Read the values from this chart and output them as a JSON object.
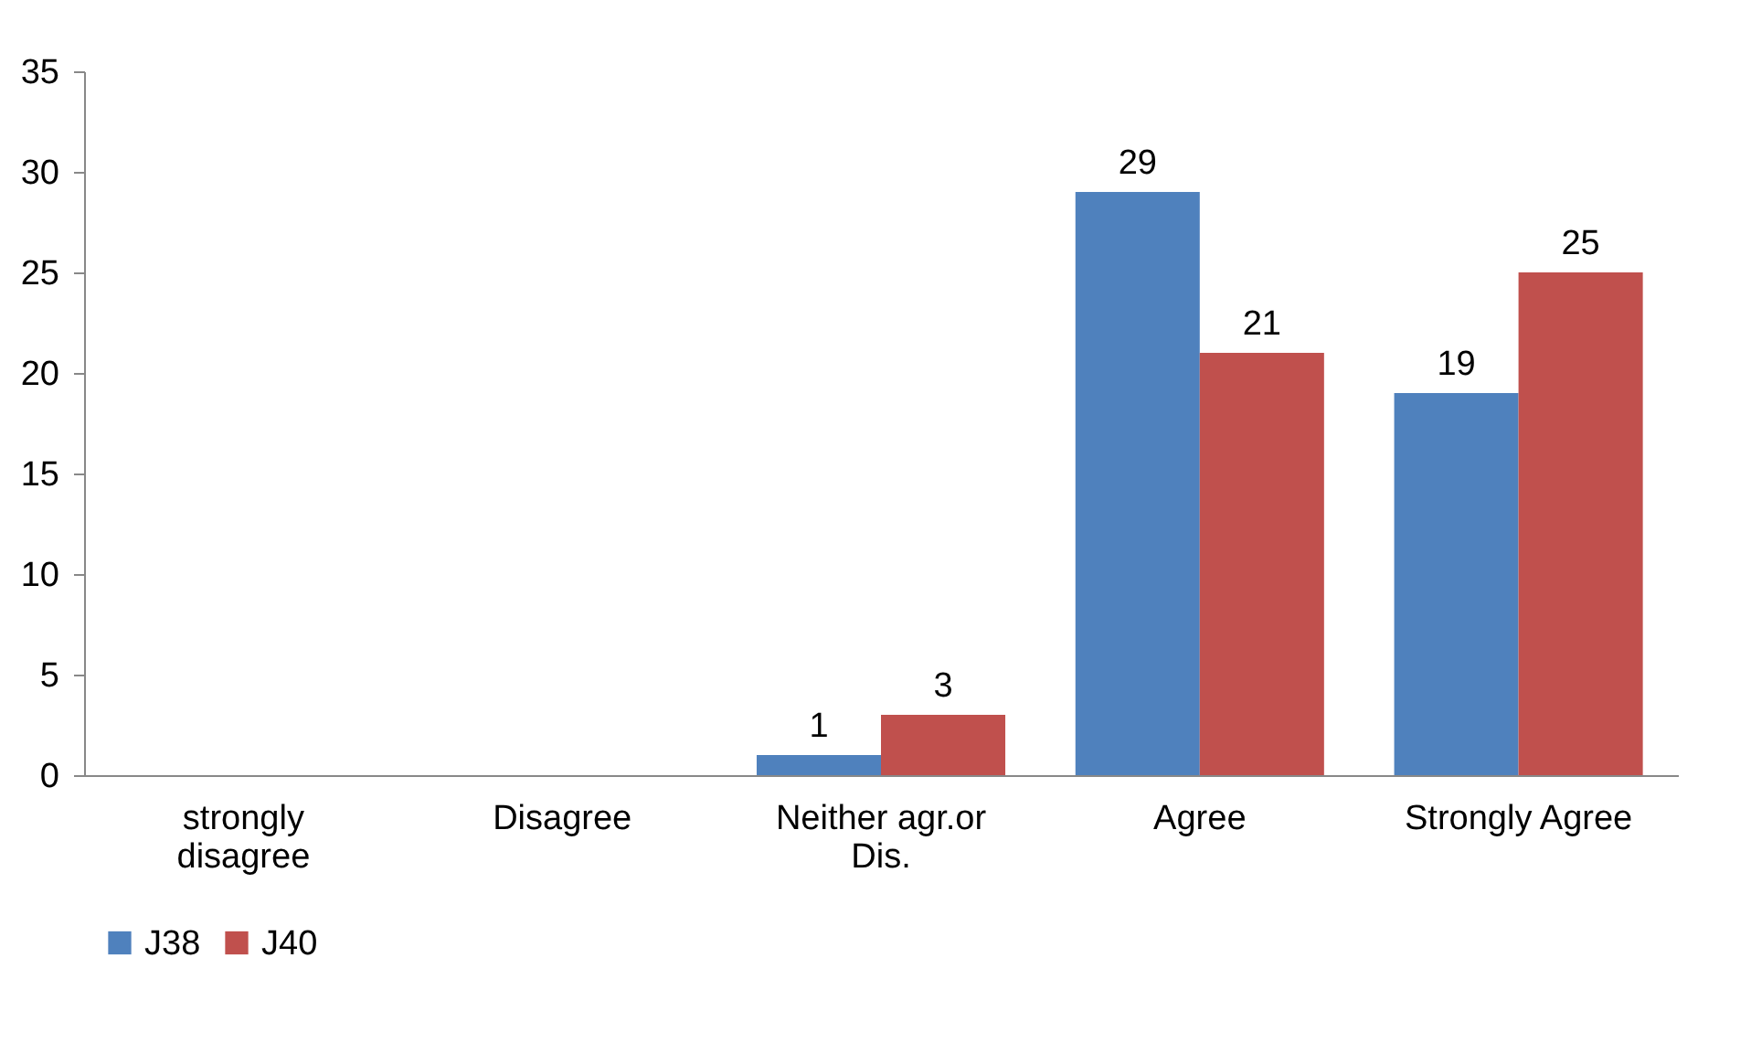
{
  "chart_data": {
    "type": "bar",
    "categories": [
      "strongly disagree",
      "Disagree",
      "Neither agr.or Dis.",
      "Agree",
      "Strongly Agree"
    ],
    "series": [
      {
        "name": "J38",
        "color": "#4f81bd",
        "values": [
          0,
          0,
          1,
          29,
          19
        ],
        "value_labels": [
          null,
          null,
          "1",
          "29",
          "19"
        ]
      },
      {
        "name": "J40",
        "color": "#c0504d",
        "values": [
          0,
          0,
          3,
          21,
          25
        ],
        "value_labels": [
          null,
          null,
          "3",
          "21",
          "25"
        ]
      }
    ],
    "ylim": [
      0,
      35
    ],
    "yticks": [
      0,
      5,
      10,
      15,
      20,
      25,
      30,
      35
    ],
    "grid": false,
    "legend": "bottom"
  }
}
